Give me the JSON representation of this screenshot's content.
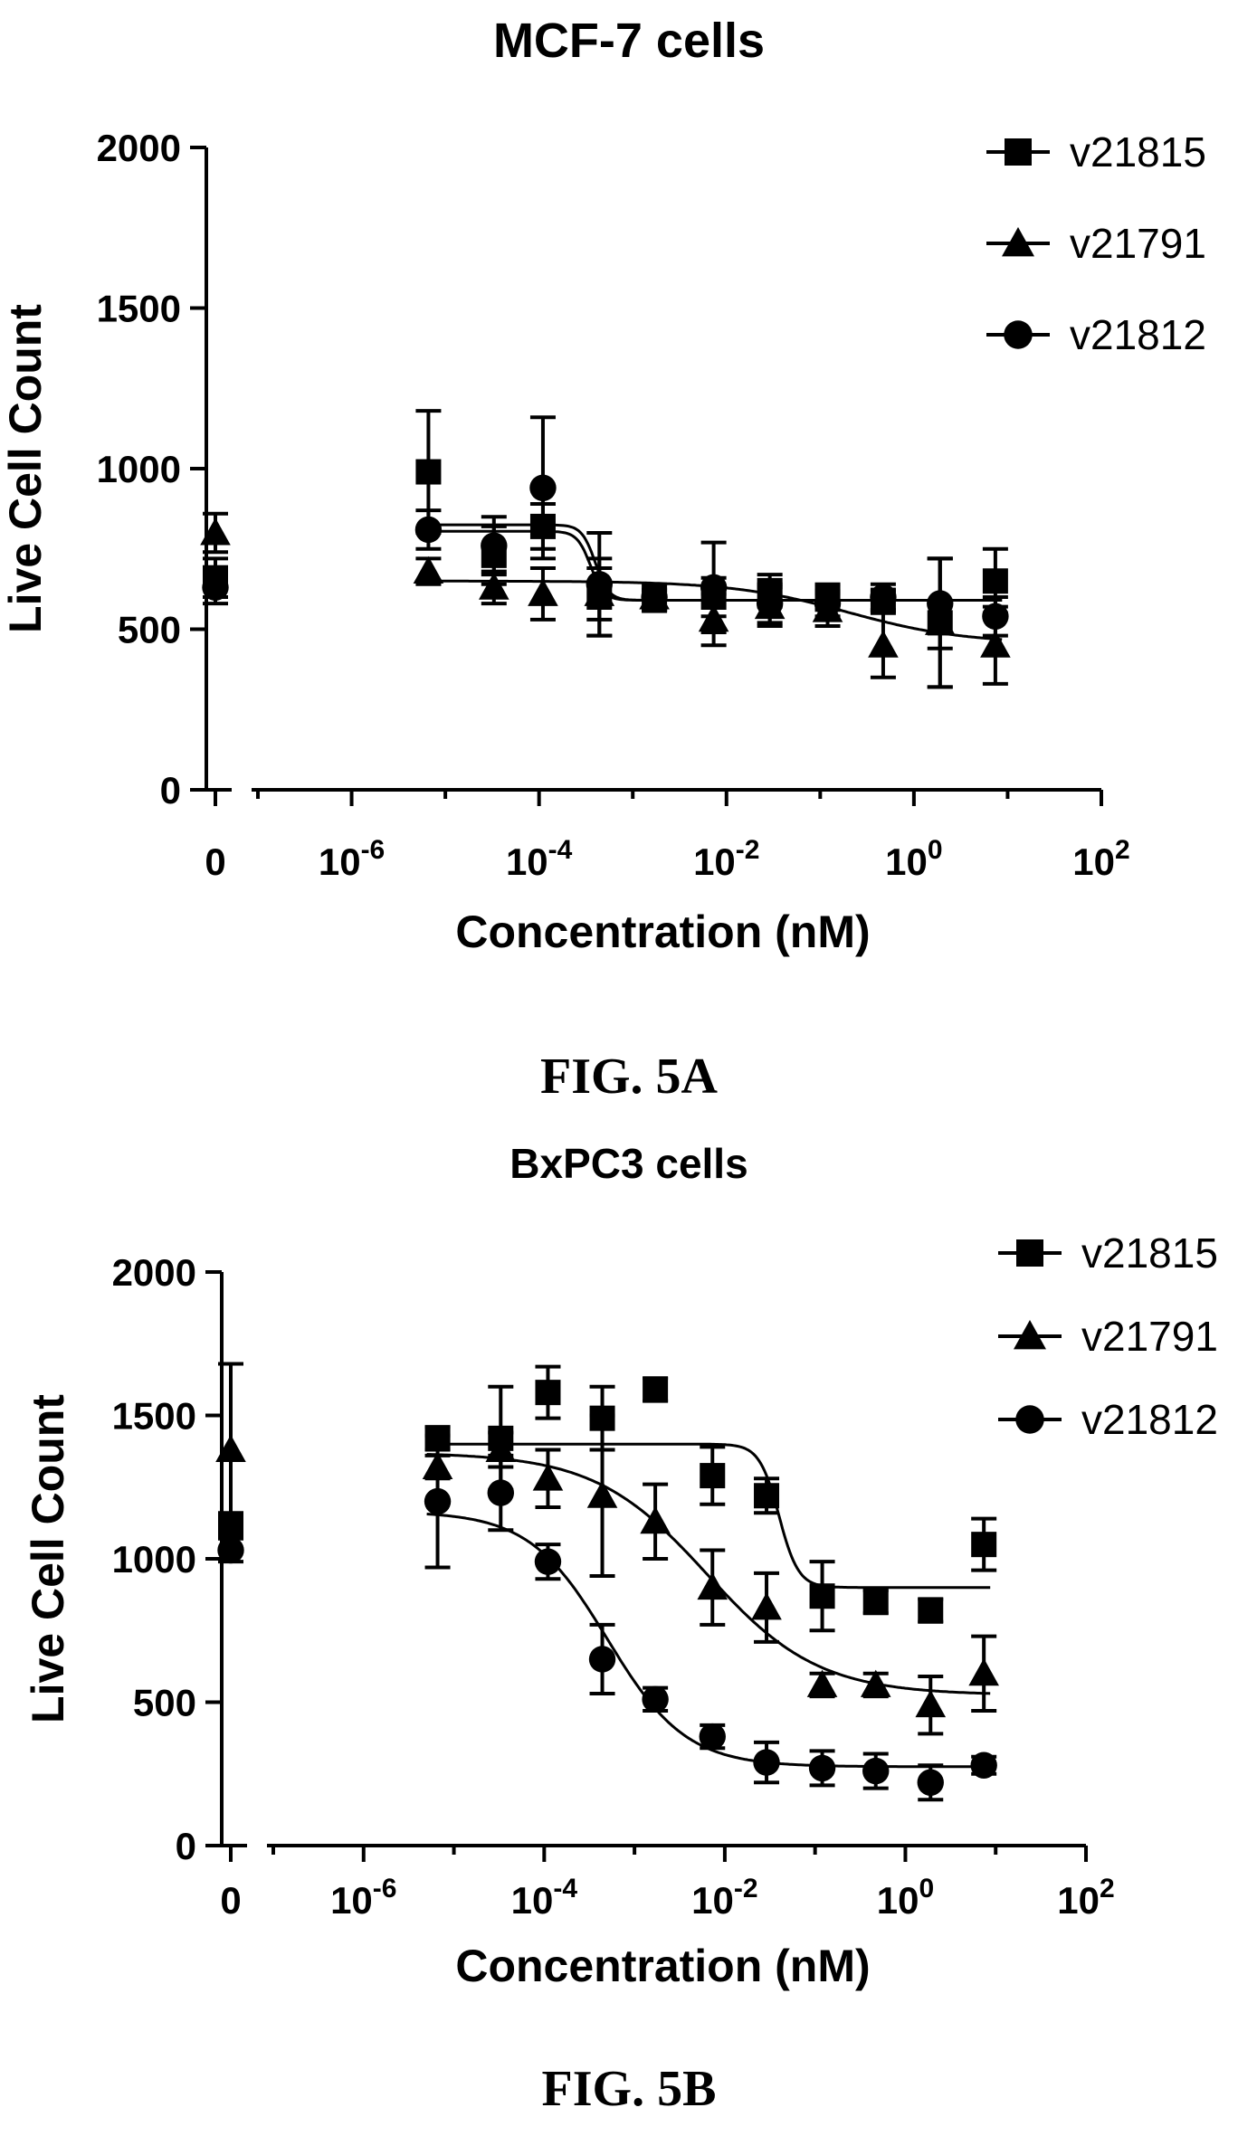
{
  "chart_data": [
    {
      "type": "scatter",
      "title": "MCF-7 cells",
      "caption": "FIG. 5A",
      "xlabel": "Concentration (nM)",
      "ylabel": "Live Cell Count",
      "x_scale": "log10 with zero break",
      "xlim_exponent": [
        -7,
        2
      ],
      "ylim": [
        0,
        2000
      ],
      "yticks": [
        0,
        500,
        1000,
        1500,
        2000
      ],
      "xtick_labels": [
        {
          "base": "0",
          "exp": ""
        },
        {
          "base": "10",
          "exp": "-6"
        },
        {
          "base": "10",
          "exp": "-4"
        },
        {
          "base": "10",
          "exp": "-2"
        },
        {
          "base": "10",
          "exp": "0"
        },
        {
          "base": "10",
          "exp": "2"
        }
      ],
      "grid": false,
      "legend_position": "top-right",
      "series": [
        {
          "name": "v21815",
          "marker": "square",
          "points": [
            {
              "x": 0,
              "y": 660,
              "err": 60
            },
            {
              "x": 6.6e-06,
              "y": 990,
              "err": 190
            },
            {
              "x": 3.3e-05,
              "y": 730,
              "err": 90
            },
            {
              "x": 0.00011,
              "y": 820,
              "err": 70
            },
            {
              "x": 0.00044,
              "y": 600,
              "err": 120
            },
            {
              "x": 0.0017,
              "y": 590,
              "err": 30
            },
            {
              "x": 0.0073,
              "y": 600,
              "err": 60
            },
            {
              "x": 0.029,
              "y": 620,
              "err": 50
            },
            {
              "x": 0.12,
              "y": 600,
              "err": 40
            },
            {
              "x": 0.47,
              "y": 590,
              "err": 30
            },
            {
              "x": 1.9,
              "y": 520,
              "err": 200
            },
            {
              "x": 7.4,
              "y": 650,
              "err": 100
            }
          ],
          "fit": {
            "top": 825,
            "bottom": 590,
            "log_ec50": -3.4,
            "hill": 6
          }
        },
        {
          "name": "v21791",
          "marker": "triangle",
          "points": [
            {
              "x": 0,
              "y": 800,
              "err": 60
            },
            {
              "x": 6.6e-06,
              "y": 680,
              "err": 40
            },
            {
              "x": 3.3e-05,
              "y": 630,
              "err": 50
            },
            {
              "x": 0.00011,
              "y": 610,
              "err": 80
            },
            {
              "x": 0.00044,
              "y": 610,
              "err": 80
            },
            {
              "x": 0.0017,
              "y": 600,
              "err": 30
            },
            {
              "x": 0.0073,
              "y": 530,
              "err": 80
            },
            {
              "x": 0.029,
              "y": 570,
              "err": 60
            },
            {
              "x": 0.12,
              "y": 560,
              "err": 50
            },
            {
              "x": 0.47,
              "y": 450,
              "err": 100
            },
            {
              "x": 1.9,
              "y": 520,
              "err": 200
            },
            {
              "x": 7.4,
              "y": 450,
              "err": 120
            }
          ],
          "fit": {
            "top": 650,
            "bottom": 455,
            "log_ec50": -0.7,
            "hill": 0.7
          }
        },
        {
          "name": "v21812",
          "marker": "circle",
          "points": [
            {
              "x": 0,
              "y": 630,
              "err": 50
            },
            {
              "x": 6.6e-06,
              "y": 810,
              "err": 60
            },
            {
              "x": 3.3e-05,
              "y": 760,
              "err": 90
            },
            {
              "x": 0.00011,
              "y": 940,
              "err": 220
            },
            {
              "x": 0.00044,
              "y": 640,
              "err": 160
            },
            {
              "x": 0.0017,
              "y": 600,
              "err": 40
            },
            {
              "x": 0.0073,
              "y": 630,
              "err": 140
            },
            {
              "x": 0.029,
              "y": 580,
              "err": 60
            },
            {
              "x": 0.12,
              "y": 580,
              "err": 40
            },
            {
              "x": 0.47,
              "y": 600,
              "err": 40
            },
            {
              "x": 1.9,
              "y": 580,
              "err": 140
            },
            {
              "x": 7.4,
              "y": 540,
              "err": 60
            }
          ],
          "fit": {
            "top": 805,
            "bottom": 590,
            "log_ec50": -3.45,
            "hill": 6
          }
        }
      ]
    },
    {
      "type": "scatter",
      "title": "BxPC3 cells",
      "caption": "FIG. 5B",
      "xlabel": "Concentration (nM)",
      "ylabel": "Live Cell Count",
      "x_scale": "log10 with zero break",
      "xlim_exponent": [
        -7,
        2
      ],
      "ylim": [
        0,
        2000
      ],
      "yticks": [
        0,
        500,
        1000,
        1500,
        2000
      ],
      "xtick_labels": [
        {
          "base": "0",
          "exp": ""
        },
        {
          "base": "10",
          "exp": "-6"
        },
        {
          "base": "10",
          "exp": "-4"
        },
        {
          "base": "10",
          "exp": "-2"
        },
        {
          "base": "10",
          "exp": "0"
        },
        {
          "base": "10",
          "exp": "2"
        }
      ],
      "grid": false,
      "legend_position": "top-right",
      "series": [
        {
          "name": "v21815",
          "marker": "square",
          "points": [
            {
              "x": 0,
              "y": 1120,
              "err": 40
            },
            {
              "x": 6.6e-06,
              "y": 1420,
              "err": 40
            },
            {
              "x": 3.3e-05,
              "y": 1420,
              "err": 180
            },
            {
              "x": 0.00011,
              "y": 1580,
              "err": 90
            },
            {
              "x": 0.00044,
              "y": 1490,
              "err": 110
            },
            {
              "x": 0.0017,
              "y": 1590,
              "err": 40
            },
            {
              "x": 0.0073,
              "y": 1290,
              "err": 100
            },
            {
              "x": 0.029,
              "y": 1220,
              "err": 60
            },
            {
              "x": 0.12,
              "y": 870,
              "err": 120
            },
            {
              "x": 0.47,
              "y": 850,
              "err": 40
            },
            {
              "x": 1.9,
              "y": 820,
              "err": 40
            },
            {
              "x": 7.4,
              "y": 1050,
              "err": 90
            }
          ],
          "fit": {
            "top": 1400,
            "bottom": 900,
            "log_ec50": -1.4,
            "hill": 4
          }
        },
        {
          "name": "v21791",
          "marker": "triangle",
          "points": [
            {
              "x": 0,
              "y": 1380,
              "err": 300
            },
            {
              "x": 6.6e-06,
              "y": 1320,
              "err": 40
            },
            {
              "x": 3.3e-05,
              "y": 1380,
              "err": 60
            },
            {
              "x": 0.00011,
              "y": 1280,
              "err": 100
            },
            {
              "x": 0.00044,
              "y": 1220,
              "err": 280
            },
            {
              "x": 0.0017,
              "y": 1130,
              "err": 130
            },
            {
              "x": 0.0073,
              "y": 900,
              "err": 130
            },
            {
              "x": 0.029,
              "y": 830,
              "err": 120
            },
            {
              "x": 0.12,
              "y": 560,
              "err": 40
            },
            {
              "x": 0.47,
              "y": 560,
              "err": 40
            },
            {
              "x": 1.9,
              "y": 490,
              "err": 100
            },
            {
              "x": 7.4,
              "y": 600,
              "err": 130
            }
          ],
          "fit": {
            "top": 1370,
            "bottom": 525,
            "log_ec50": -2.2,
            "hill": 0.7
          }
        },
        {
          "name": "v21812",
          "marker": "circle",
          "points": [
            {
              "x": 0,
              "y": 1030,
              "err": 40
            },
            {
              "x": 6.6e-06,
              "y": 1200,
              "err": 230
            },
            {
              "x": 3.3e-05,
              "y": 1230,
              "err": 130
            },
            {
              "x": 0.00011,
              "y": 990,
              "err": 60
            },
            {
              "x": 0.00044,
              "y": 650,
              "err": 120
            },
            {
              "x": 0.0017,
              "y": 510,
              "err": 40
            },
            {
              "x": 0.0073,
              "y": 380,
              "err": 40
            },
            {
              "x": 0.029,
              "y": 290,
              "err": 70
            },
            {
              "x": 0.12,
              "y": 270,
              "err": 60
            },
            {
              "x": 0.47,
              "y": 260,
              "err": 60
            },
            {
              "x": 1.9,
              "y": 220,
              "err": 60
            },
            {
              "x": 7.4,
              "y": 280,
              "err": 30
            }
          ],
          "fit": {
            "top": 1165,
            "bottom": 275,
            "log_ec50": -3.3,
            "hill": 1
          }
        }
      ]
    }
  ]
}
